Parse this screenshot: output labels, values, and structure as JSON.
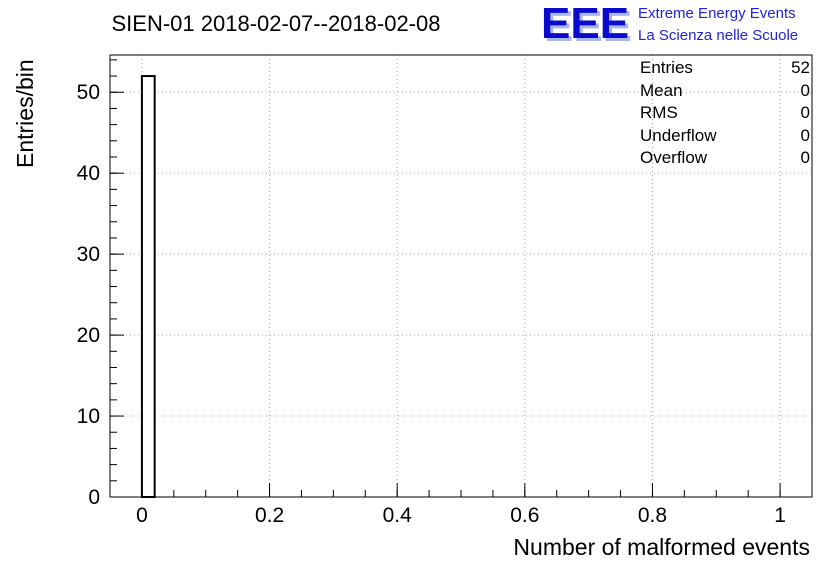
{
  "header": {
    "title": "SIEN-01 2018-02-07--2018-02-08"
  },
  "logo": {
    "acronym": "EEE",
    "line1": "Extreme Energy Events",
    "line2": "La Scienza nelle Scuole",
    "acronym_color": "#0b0bd0",
    "text_color": "#2222dd"
  },
  "stats_box": {
    "rows": [
      {
        "label": "Entries",
        "value": "52"
      },
      {
        "label": "Mean",
        "value": "0"
      },
      {
        "label": "RMS",
        "value": "0"
      },
      {
        "label": "Underflow",
        "value": "0"
      },
      {
        "label": "Overflow",
        "value": "0"
      }
    ]
  },
  "chart_data": {
    "type": "bar",
    "title": "SIEN-01 2018-02-07--2018-02-08",
    "xlabel": "Number of malformed events",
    "ylabel": "Entries/bin",
    "xlim": [
      -0.05,
      1.05
    ],
    "ylim": [
      0,
      54.6
    ],
    "xticks": {
      "values": [
        0,
        0.2,
        0.4,
        0.6,
        0.8,
        1
      ],
      "labels": [
        "0",
        "0.2",
        "0.4",
        "0.6",
        "0.8",
        "1"
      ]
    },
    "yticks": {
      "values": [
        0,
        10,
        20,
        30,
        40,
        50
      ],
      "labels": [
        "0",
        "10",
        "20",
        "30",
        "40",
        "50"
      ]
    },
    "x_minor_step": 0.05,
    "y_minor_step": 2,
    "grid": true,
    "grid_color": "#aaaaaa",
    "bars": [
      {
        "x_start": 0,
        "x_end": 0.02,
        "height": 52
      }
    ],
    "bar_fill": "#ffffff",
    "bar_stroke": "#000000",
    "stats": {
      "entries": 52,
      "mean": 0,
      "rms": 0,
      "underflow": 0,
      "overflow": 0
    },
    "legend_position": "none"
  }
}
